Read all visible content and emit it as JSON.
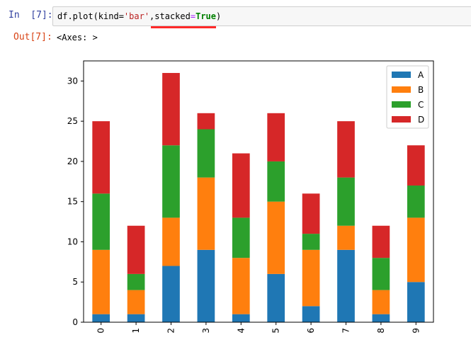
{
  "cell": {
    "in_prompt": "In  [7]:",
    "code_parts": [
      "df.plot(kind=",
      "'bar'",
      ",",
      "stacked",
      "=",
      "True",
      ")"
    ],
    "out_prompt": "Out[7]:",
    "output_text": "<Axes: >"
  },
  "chart_data": {
    "type": "bar",
    "stacked": true,
    "categories": [
      "0",
      "1",
      "2",
      "3",
      "4",
      "5",
      "6",
      "7",
      "8",
      "9"
    ],
    "series": [
      {
        "name": "A",
        "color": "#1f77b4",
        "values": [
          1,
          1,
          7,
          9,
          1,
          6,
          2,
          9,
          1,
          5
        ]
      },
      {
        "name": "B",
        "color": "#ff7f0e",
        "values": [
          8,
          3,
          6,
          9,
          7,
          9,
          7,
          3,
          3,
          8
        ]
      },
      {
        "name": "C",
        "color": "#2ca02c",
        "values": [
          7,
          2,
          9,
          6,
          5,
          5,
          2,
          6,
          4,
          4
        ]
      },
      {
        "name": "D",
        "color": "#d62728",
        "values": [
          9,
          6,
          9,
          2,
          8,
          6,
          5,
          7,
          4,
          5
        ]
      }
    ],
    "ylim": [
      0,
      32.5
    ],
    "yticks": [
      0,
      5,
      10,
      15,
      20,
      25,
      30
    ],
    "legend": "top-right",
    "xtick_rotation": "vertical"
  }
}
